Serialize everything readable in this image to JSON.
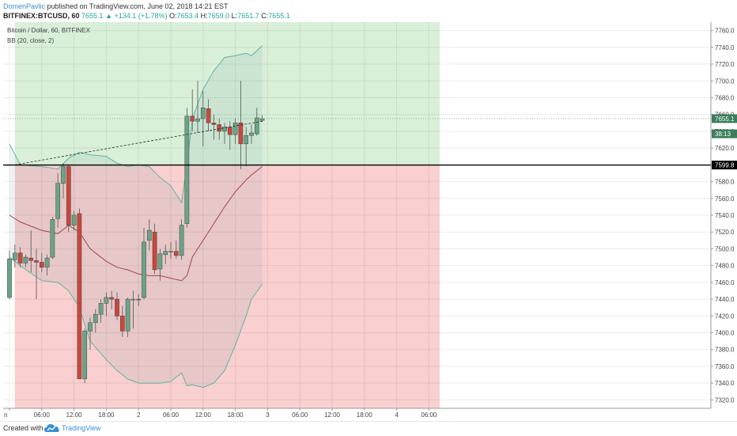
{
  "header": {
    "author": "DomenPavlic",
    "published_text": "published on TradingView.com, June 02, 2018 14:21 EST",
    "symbol": "BITFINEX:BTCUSD, 60",
    "last": "7655.1",
    "change": "▲ +134.1 (+1.78%)",
    "o_label": "O:",
    "o_val": "7653.4",
    "h_label": "H:",
    "h_val": "7659.0",
    "l_label": "L:",
    "l_val": "7651.7",
    "c_label": "C:",
    "c_val": "7655.1"
  },
  "legend": {
    "title": "Bitcoin / Dollar, 60, BITFINEX",
    "indicator": "BB (20, close, 2)"
  },
  "footer": {
    "created_with": "Created with",
    "brand": "TradingView",
    "brand_icon": "tradingview-cloud-icon"
  },
  "colors": {
    "up": "#6aa486",
    "down": "#c9473c",
    "bb_band": "#5fb6a2",
    "bb_basis": "#a04848",
    "long_zone": "#d9efd8",
    "short_zone": "#f9cfcf",
    "entry_line": "#000000",
    "price_label": "#3c7d5c"
  },
  "chart_data": {
    "type": "candlestick",
    "symbol": "BITFINEX:BTCUSD",
    "timeframe": "60",
    "ylim": [
      7310,
      7770
    ],
    "y_ticks": [
      7320,
      7340,
      7360,
      7380,
      7400,
      7420,
      7440,
      7460,
      7480,
      7500,
      7520,
      7540,
      7560,
      7580,
      7600,
      7620,
      7640,
      7660,
      7680,
      7700,
      7720,
      7740,
      7760
    ],
    "x_ticks": [
      {
        "label": "n",
        "t": 0
      },
      {
        "label": "06:00",
        "t": 6
      },
      {
        "label": "12:00",
        "t": 12
      },
      {
        "label": "18:00",
        "t": 18
      },
      {
        "label": "2",
        "t": 24
      },
      {
        "label": "06:00",
        "t": 30
      },
      {
        "label": "12:00",
        "t": 36
      },
      {
        "label": "18:00",
        "t": 42
      },
      {
        "label": "3",
        "t": 48
      },
      {
        "label": "06:00",
        "t": 54
      },
      {
        "label": "12:00",
        "t": 60
      },
      {
        "label": "18:00",
        "t": 66
      },
      {
        "label": "4",
        "t": 72
      },
      {
        "label": "06:00",
        "t": 78
      }
    ],
    "candles": [
      {
        "t": 0,
        "o": 7442,
        "h": 7498,
        "l": 7440,
        "c": 7488
      },
      {
        "t": 1,
        "o": 7487,
        "h": 7505,
        "l": 7478,
        "c": 7495
      },
      {
        "t": 2,
        "o": 7495,
        "h": 7502,
        "l": 7478,
        "c": 7483
      },
      {
        "t": 3,
        "o": 7483,
        "h": 7493,
        "l": 7478,
        "c": 7490
      },
      {
        "t": 4,
        "o": 7489,
        "h": 7522,
        "l": 7472,
        "c": 7486
      },
      {
        "t": 5,
        "o": 7486,
        "h": 7500,
        "l": 7440,
        "c": 7484
      },
      {
        "t": 6,
        "o": 7484,
        "h": 7495,
        "l": 7472,
        "c": 7478
      },
      {
        "t": 7,
        "o": 7478,
        "h": 7493,
        "l": 7468,
        "c": 7489
      },
      {
        "t": 8,
        "o": 7490,
        "h": 7538,
        "l": 7488,
        "c": 7535
      },
      {
        "t": 9,
        "o": 7536,
        "h": 7590,
        "l": 7525,
        "c": 7578
      },
      {
        "t": 10,
        "o": 7578,
        "h": 7602,
        "l": 7560,
        "c": 7598
      },
      {
        "t": 11,
        "o": 7598,
        "h": 7600,
        "l": 7520,
        "c": 7528
      },
      {
        "t": 12,
        "o": 7528,
        "h": 7545,
        "l": 7522,
        "c": 7540
      },
      {
        "t": 13,
        "o": 7542,
        "h": 7548,
        "l": 7345,
        "c": 7345
      },
      {
        "t": 14,
        "o": 7345,
        "h": 7405,
        "l": 7340,
        "c": 7402
      },
      {
        "t": 15,
        "o": 7402,
        "h": 7418,
        "l": 7380,
        "c": 7412
      },
      {
        "t": 16,
        "o": 7412,
        "h": 7428,
        "l": 7400,
        "c": 7422
      },
      {
        "t": 17,
        "o": 7422,
        "h": 7440,
        "l": 7412,
        "c": 7435
      },
      {
        "t": 18,
        "o": 7435,
        "h": 7448,
        "l": 7420,
        "c": 7442
      },
      {
        "t": 19,
        "o": 7442,
        "h": 7450,
        "l": 7428,
        "c": 7440
      },
      {
        "t": 20,
        "o": 7440,
        "h": 7448,
        "l": 7415,
        "c": 7420
      },
      {
        "t": 21,
        "o": 7420,
        "h": 7432,
        "l": 7395,
        "c": 7402
      },
      {
        "t": 22,
        "o": 7402,
        "h": 7442,
        "l": 7395,
        "c": 7440
      },
      {
        "t": 23,
        "o": 7440,
        "h": 7450,
        "l": 7405,
        "c": 7440
      },
      {
        "t": 24,
        "o": 7440,
        "h": 7446,
        "l": 7432,
        "c": 7440
      },
      {
        "t": 25,
        "o": 7442,
        "h": 7525,
        "l": 7440,
        "c": 7508
      },
      {
        "t": 26,
        "o": 7510,
        "h": 7535,
        "l": 7498,
        "c": 7522
      },
      {
        "t": 27,
        "o": 7520,
        "h": 7530,
        "l": 7470,
        "c": 7475
      },
      {
        "t": 28,
        "o": 7476,
        "h": 7500,
        "l": 7462,
        "c": 7494
      },
      {
        "t": 29,
        "o": 7493,
        "h": 7505,
        "l": 7482,
        "c": 7497
      },
      {
        "t": 30,
        "o": 7497,
        "h": 7508,
        "l": 7488,
        "c": 7497
      },
      {
        "t": 31,
        "o": 7497,
        "h": 7510,
        "l": 7488,
        "c": 7492
      },
      {
        "t": 32,
        "o": 7492,
        "h": 7535,
        "l": 7487,
        "c": 7528
      },
      {
        "t": 33,
        "o": 7530,
        "h": 7668,
        "l": 7525,
        "c": 7658
      },
      {
        "t": 34,
        "o": 7658,
        "h": 7690,
        "l": 7640,
        "c": 7652
      },
      {
        "t": 35,
        "o": 7652,
        "h": 7700,
        "l": 7638,
        "c": 7655
      },
      {
        "t": 36,
        "o": 7655,
        "h": 7688,
        "l": 7622,
        "c": 7668
      },
      {
        "t": 37,
        "o": 7667,
        "h": 7678,
        "l": 7640,
        "c": 7650
      },
      {
        "t": 38,
        "o": 7650,
        "h": 7660,
        "l": 7630,
        "c": 7648
      },
      {
        "t": 39,
        "o": 7648,
        "h": 7655,
        "l": 7630,
        "c": 7640
      },
      {
        "t": 40,
        "o": 7640,
        "h": 7650,
        "l": 7625,
        "c": 7645
      },
      {
        "t": 41,
        "o": 7645,
        "h": 7652,
        "l": 7618,
        "c": 7636
      },
      {
        "t": 42,
        "o": 7636,
        "h": 7655,
        "l": 7625,
        "c": 7650
      },
      {
        "t": 43,
        "o": 7650,
        "h": 7700,
        "l": 7595,
        "c": 7625
      },
      {
        "t": 44,
        "o": 7625,
        "h": 7645,
        "l": 7598,
        "c": 7635
      },
      {
        "t": 45,
        "o": 7635,
        "h": 7648,
        "l": 7625,
        "c": 7638
      },
      {
        "t": 46,
        "o": 7637,
        "h": 7668,
        "l": 7635,
        "c": 7656
      },
      {
        "t": 47,
        "o": 7653,
        "h": 7659,
        "l": 7651,
        "c": 7655
      }
    ],
    "bollinger": {
      "period": 20,
      "source": "close",
      "mult": 2,
      "upper": [
        [
          0,
          7625
        ],
        [
          2,
          7600
        ],
        [
          6,
          7598
        ],
        [
          9,
          7595
        ],
        [
          11,
          7608
        ],
        [
          13,
          7615
        ],
        [
          15,
          7612
        ],
        [
          18,
          7610
        ],
        [
          20,
          7602
        ],
        [
          22,
          7598
        ],
        [
          24,
          7600
        ],
        [
          26,
          7598
        ],
        [
          28,
          7585
        ],
        [
          30,
          7575
        ],
        [
          32,
          7555
        ],
        [
          33,
          7600
        ],
        [
          34,
          7655
        ],
        [
          36,
          7690
        ],
        [
          38,
          7712
        ],
        [
          40,
          7728
        ],
        [
          42,
          7730
        ],
        [
          44,
          7733
        ],
        [
          45,
          7730
        ],
        [
          47,
          7742
        ]
      ],
      "basis": [
        [
          0,
          7540
        ],
        [
          2,
          7532
        ],
        [
          6,
          7522
        ],
        [
          9,
          7518
        ],
        [
          11,
          7528
        ],
        [
          13,
          7520
        ],
        [
          15,
          7500
        ],
        [
          18,
          7485
        ],
        [
          20,
          7478
        ],
        [
          22,
          7475
        ],
        [
          24,
          7470
        ],
        [
          26,
          7468
        ],
        [
          28,
          7468
        ],
        [
          30,
          7465
        ],
        [
          32,
          7462
        ],
        [
          33,
          7468
        ],
        [
          34,
          7490
        ],
        [
          36,
          7510
        ],
        [
          38,
          7530
        ],
        [
          40,
          7550
        ],
        [
          42,
          7568
        ],
        [
          44,
          7582
        ],
        [
          45,
          7588
        ],
        [
          47,
          7598
        ]
      ],
      "lower": [
        [
          0,
          7490
        ],
        [
          2,
          7480
        ],
        [
          6,
          7462
        ],
        [
          9,
          7460
        ],
        [
          11,
          7450
        ],
        [
          13,
          7430
        ],
        [
          15,
          7390
        ],
        [
          18,
          7368
        ],
        [
          20,
          7355
        ],
        [
          22,
          7345
        ],
        [
          24,
          7340
        ],
        [
          26,
          7340
        ],
        [
          28,
          7340
        ],
        [
          30,
          7342
        ],
        [
          32,
          7352
        ],
        [
          33,
          7337
        ],
        [
          34,
          7338
        ],
        [
          36,
          7335
        ],
        [
          38,
          7340
        ],
        [
          40,
          7355
        ],
        [
          42,
          7385
        ],
        [
          44,
          7420
        ],
        [
          45,
          7440
        ],
        [
          47,
          7458
        ]
      ]
    },
    "trend_line": [
      [
        1,
        7600
      ],
      [
        47,
        7652
      ]
    ],
    "long_position": {
      "entry": 7599.8,
      "target": 7770,
      "stop": 7310,
      "from_t": 1,
      "to_t": 80
    },
    "current_price": 7655.1,
    "price_labels": [
      {
        "text": "7655.1",
        "value": 7655.1
      },
      {
        "text": "38:13",
        "value": 7637
      },
      {
        "text": "7599.8",
        "value": 7599.8
      }
    ]
  }
}
